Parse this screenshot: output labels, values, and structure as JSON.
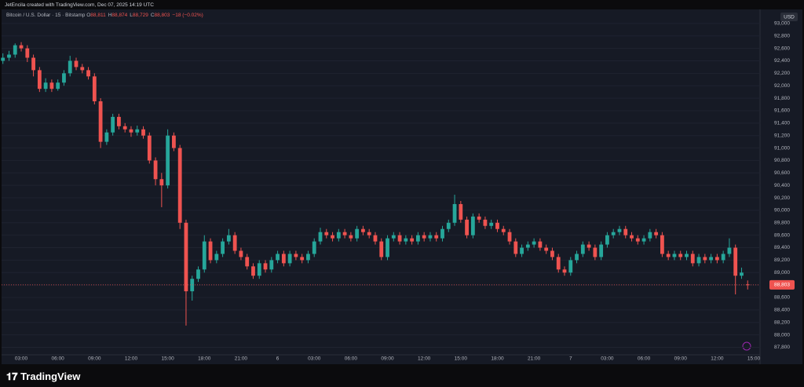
{
  "credit": "JetEncila created with TradingView.com, Dec 07, 2025 14:19 UTC",
  "brand": "𝟏𝟕 TradingView",
  "currency": "USD",
  "legend": {
    "symbol": "Bitcoin / U.S. Dollar · 15 · Bitstamp",
    "ohlc": [
      {
        "key": "O",
        "value": "88,811"
      },
      {
        "key": "H",
        "value": "88,874"
      },
      {
        "key": "L",
        "value": "88,729"
      },
      {
        "key": "C",
        "value": "88,803"
      }
    ],
    "change": "−18 (−0.02%)"
  },
  "chart_data": {
    "type": "candlestick",
    "up_color": "#26a69a",
    "down_color": "#ef5350",
    "last_price_label": "88,803",
    "ylim": [
      87680,
      93200
    ],
    "yticks": [
      {
        "value": 87800,
        "label": "87,800"
      },
      {
        "value": 88000,
        "label": "88,000"
      },
      {
        "value": 88200,
        "label": "88,200"
      },
      {
        "value": 88400,
        "label": "88,400"
      },
      {
        "value": 88600,
        "label": "88,600"
      },
      {
        "value": 88800,
        "label": "88,800"
      },
      {
        "value": 89000,
        "label": "89,000"
      },
      {
        "value": 89200,
        "label": "89,200"
      },
      {
        "value": 89400,
        "label": "89,400"
      },
      {
        "value": 89600,
        "label": "89,600"
      },
      {
        "value": 89800,
        "label": "89,800"
      },
      {
        "value": 90000,
        "label": "90,000"
      },
      {
        "value": 90200,
        "label": "90,200"
      },
      {
        "value": 90400,
        "label": "90,400"
      },
      {
        "value": 90600,
        "label": "90,600"
      },
      {
        "value": 90800,
        "label": "90,800"
      },
      {
        "value": 91000,
        "label": "91,000"
      },
      {
        "value": 91200,
        "label": "91,200"
      },
      {
        "value": 91400,
        "label": "91,400"
      },
      {
        "value": 91600,
        "label": "91,600"
      },
      {
        "value": 91800,
        "label": "91,800"
      },
      {
        "value": 92000,
        "label": "92,000"
      },
      {
        "value": 92200,
        "label": "92,200"
      },
      {
        "value": 92400,
        "label": "92,400"
      },
      {
        "value": 92600,
        "label": "92,600"
      },
      {
        "value": 92800,
        "label": "92,800"
      },
      {
        "value": 93000,
        "label": "93,000"
      }
    ],
    "grid": true,
    "categories": [
      null,
      null,
      null,
      "03:00",
      null,
      null,
      null,
      null,
      null,
      "06:00",
      null,
      null,
      null,
      null,
      null,
      "09:00",
      null,
      null,
      null,
      null,
      null,
      "12:00",
      null,
      null,
      null,
      null,
      null,
      "15:00",
      null,
      null,
      null,
      null,
      null,
      "18:00",
      null,
      null,
      null,
      null,
      null,
      "21:00",
      null,
      null,
      null,
      null,
      null,
      "6",
      null,
      null,
      null,
      null,
      null,
      "03:00",
      null,
      null,
      null,
      null,
      null,
      "06:00",
      null,
      null,
      null,
      null,
      null,
      "09:00",
      null,
      null,
      null,
      null,
      null,
      "12:00",
      null,
      null,
      null,
      null,
      null,
      "15:00",
      null,
      null,
      null,
      null,
      null,
      "18:00",
      null,
      null,
      null,
      null,
      null,
      "21:00",
      null,
      null,
      null,
      null,
      null,
      "7",
      null,
      null,
      null,
      null,
      null,
      "03:00",
      null,
      null,
      null,
      null,
      null,
      "06:00",
      null,
      null,
      null,
      null,
      null,
      "09:00",
      null,
      null,
      null,
      null,
      null,
      "12:00",
      null,
      null,
      null,
      null,
      null,
      "15:00"
    ],
    "ohlc": [
      [
        92400,
        92520,
        92350,
        92450
      ],
      [
        92450,
        92560,
        92400,
        92500
      ],
      [
        92500,
        92680,
        92450,
        92650
      ],
      [
        92650,
        92700,
        92550,
        92600
      ],
      [
        92600,
        92650,
        92380,
        92450
      ],
      [
        92450,
        92500,
        92150,
        92250
      ],
      [
        92250,
        92300,
        91900,
        91950
      ],
      [
        91950,
        92120,
        91900,
        92050
      ],
      [
        92050,
        92100,
        91900,
        91950
      ],
      [
        91950,
        92100,
        91920,
        92050
      ],
      [
        92050,
        92250,
        92000,
        92200
      ],
      [
        92200,
        92480,
        92150,
        92400
      ],
      [
        92400,
        92450,
        92250,
        92300
      ],
      [
        92300,
        92350,
        92200,
        92250
      ],
      [
        92250,
        92300,
        92100,
        92150
      ],
      [
        92150,
        92200,
        91700,
        91750
      ],
      [
        91750,
        91800,
        91000,
        91100
      ],
      [
        91100,
        91300,
        91050,
        91250
      ],
      [
        91250,
        91550,
        91200,
        91500
      ],
      [
        91500,
        91550,
        91300,
        91350
      ],
      [
        91350,
        91400,
        91250,
        91300
      ],
      [
        91300,
        91350,
        91180,
        91250
      ],
      [
        91250,
        91360,
        91200,
        91300
      ],
      [
        91300,
        91350,
        91150,
        91200
      ],
      [
        91200,
        91250,
        90750,
        90800
      ],
      [
        90800,
        90850,
        90400,
        90500
      ],
      [
        90500,
        90600,
        90050,
        90400
      ],
      [
        90400,
        91300,
        90350,
        91200
      ],
      [
        91200,
        91250,
        90950,
        91000
      ],
      [
        91000,
        91050,
        89700,
        89800
      ],
      [
        89800,
        89850,
        88150,
        88700
      ],
      [
        88700,
        88950,
        88550,
        88900
      ],
      [
        88900,
        89100,
        88850,
        89050
      ],
      [
        89050,
        89600,
        89000,
        89500
      ],
      [
        89500,
        89550,
        89150,
        89200
      ],
      [
        89200,
        89350,
        89150,
        89300
      ],
      [
        89300,
        89550,
        89250,
        89500
      ],
      [
        89500,
        89700,
        89450,
        89600
      ],
      [
        89600,
        89650,
        89300,
        89350
      ],
      [
        89350,
        89400,
        89200,
        89250
      ],
      [
        89250,
        89300,
        89050,
        89100
      ],
      [
        89100,
        89150,
        88900,
        88950
      ],
      [
        88950,
        89200,
        88900,
        89150
      ],
      [
        89150,
        89200,
        89000,
        89050
      ],
      [
        89050,
        89250,
        89000,
        89200
      ],
      [
        89200,
        89350,
        89150,
        89300
      ],
      [
        89300,
        89350,
        89100,
        89150
      ],
      [
        89150,
        89350,
        89100,
        89300
      ],
      [
        89300,
        89350,
        89200,
        89250
      ],
      [
        89250,
        89300,
        89150,
        89200
      ],
      [
        89200,
        89350,
        89150,
        89300
      ],
      [
        89300,
        89550,
        89250,
        89500
      ],
      [
        89500,
        89720,
        89450,
        89650
      ],
      [
        89650,
        89700,
        89550,
        89600
      ],
      [
        89600,
        89650,
        89500,
        89550
      ],
      [
        89550,
        89700,
        89500,
        89650
      ],
      [
        89650,
        89700,
        89550,
        89600
      ],
      [
        89600,
        89650,
        89500,
        89550
      ],
      [
        89550,
        89750,
        89500,
        89700
      ],
      [
        89700,
        89750,
        89600,
        89650
      ],
      [
        89650,
        89700,
        89550,
        89600
      ],
      [
        89600,
        89650,
        89450,
        89500
      ],
      [
        89500,
        89550,
        89200,
        89250
      ],
      [
        89250,
        89600,
        89200,
        89550
      ],
      [
        89550,
        89650,
        89500,
        89600
      ],
      [
        89600,
        89650,
        89450,
        89500
      ],
      [
        89500,
        89600,
        89450,
        89550
      ],
      [
        89550,
        89600,
        89450,
        89500
      ],
      [
        89500,
        89650,
        89450,
        89600
      ],
      [
        89600,
        89650,
        89500,
        89550
      ],
      [
        89550,
        89650,
        89500,
        89600
      ],
      [
        89600,
        89650,
        89500,
        89550
      ],
      [
        89550,
        89750,
        89500,
        89700
      ],
      [
        89700,
        89850,
        89650,
        89800
      ],
      [
        89800,
        90250,
        89750,
        90100
      ],
      [
        90100,
        90150,
        89800,
        89850
      ],
      [
        89850,
        89900,
        89550,
        89600
      ],
      [
        89600,
        89950,
        89550,
        89900
      ],
      [
        89900,
        89950,
        89800,
        89850
      ],
      [
        89850,
        89900,
        89700,
        89750
      ],
      [
        89750,
        89850,
        89700,
        89800
      ],
      [
        89800,
        89850,
        89650,
        89700
      ],
      [
        89700,
        89750,
        89600,
        89650
      ],
      [
        89650,
        89700,
        89450,
        89500
      ],
      [
        89500,
        89550,
        89250,
        89300
      ],
      [
        89300,
        89450,
        89250,
        89400
      ],
      [
        89400,
        89500,
        89350,
        89450
      ],
      [
        89450,
        89550,
        89400,
        89500
      ],
      [
        89500,
        89550,
        89350,
        89400
      ],
      [
        89400,
        89450,
        89300,
        89350
      ],
      [
        89350,
        89400,
        89200,
        89250
      ],
      [
        89250,
        89300,
        89000,
        89050
      ],
      [
        89050,
        89100,
        88950,
        89000
      ],
      [
        89000,
        89250,
        88950,
        89200
      ],
      [
        89200,
        89350,
        89150,
        89300
      ],
      [
        89300,
        89500,
        89250,
        89450
      ],
      [
        89450,
        89500,
        89350,
        89400
      ],
      [
        89400,
        89450,
        89200,
        89250
      ],
      [
        89250,
        89500,
        89200,
        89450
      ],
      [
        89450,
        89650,
        89400,
        89600
      ],
      [
        89600,
        89700,
        89550,
        89650
      ],
      [
        89650,
        89750,
        89600,
        89700
      ],
      [
        89700,
        89750,
        89550,
        89600
      ],
      [
        89600,
        89650,
        89500,
        89550
      ],
      [
        89550,
        89600,
        89450,
        89500
      ],
      [
        89500,
        89600,
        89450,
        89550
      ],
      [
        89550,
        89700,
        89500,
        89650
      ],
      [
        89650,
        89700,
        89550,
        89600
      ],
      [
        89600,
        89650,
        89250,
        89300
      ],
      [
        89300,
        89350,
        89200,
        89250
      ],
      [
        89250,
        89350,
        89200,
        89300
      ],
      [
        89300,
        89350,
        89200,
        89250
      ],
      [
        89250,
        89350,
        89200,
        89300
      ],
      [
        89300,
        89350,
        89100,
        89150
      ],
      [
        89150,
        89300,
        89100,
        89250
      ],
      [
        89250,
        89300,
        89150,
        89200
      ],
      [
        89200,
        89300,
        89150,
        89250
      ],
      [
        89250,
        89300,
        89150,
        89200
      ],
      [
        89200,
        89350,
        89150,
        89300
      ],
      [
        89300,
        89550,
        89250,
        89400
      ],
      [
        89400,
        89450,
        88650,
        88950
      ],
      [
        88950,
        89080,
        88900,
        89000
      ],
      [
        88811,
        88874,
        88729,
        88803
      ],
      null
    ]
  }
}
